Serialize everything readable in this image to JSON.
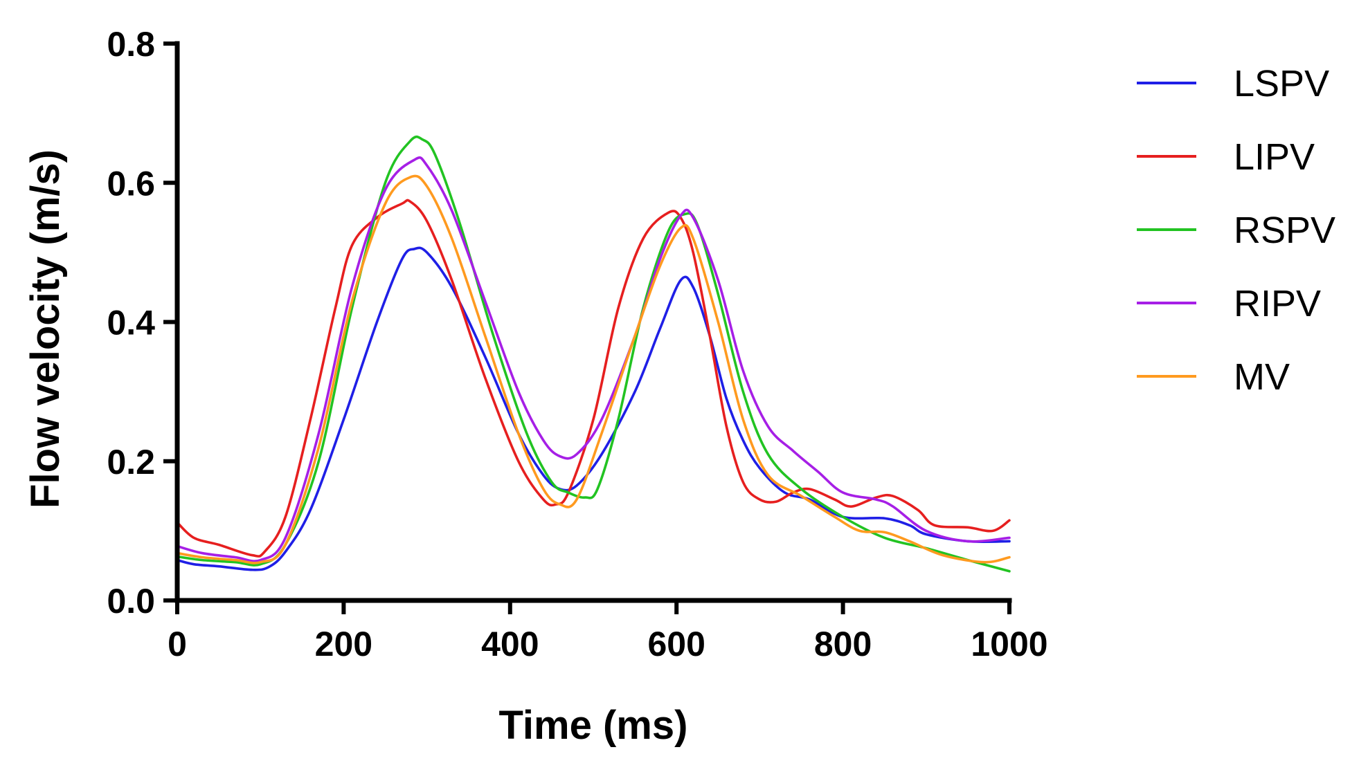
{
  "chart_data": {
    "type": "line",
    "title": "",
    "xlabel": "Time (ms)",
    "ylabel": "Flow velocity (m/s)",
    "xlim": [
      0,
      1000
    ],
    "ylim": [
      0,
      0.8
    ],
    "x_ticks": [
      0,
      200,
      400,
      600,
      800,
      1000
    ],
    "x_tick_labels": [
      "0",
      "200",
      "400",
      "600",
      "800",
      "1000"
    ],
    "y_ticks": [
      0,
      0.2,
      0.4,
      0.6,
      0.8
    ],
    "y_tick_labels": [
      "0.0",
      "0.2",
      "0.4",
      "0.6",
      "0.8"
    ],
    "grid": false,
    "legend_position": "top-right outside",
    "series": [
      {
        "name": "LSPV",
        "color": "#1f1fe6",
        "points": [
          [
            0,
            0.058
          ],
          [
            20,
            0.052
          ],
          [
            50,
            0.049
          ],
          [
            90,
            0.044
          ],
          [
            110,
            0.048
          ],
          [
            130,
            0.07
          ],
          [
            160,
            0.13
          ],
          [
            200,
            0.26
          ],
          [
            240,
            0.4
          ],
          [
            270,
            0.49
          ],
          [
            285,
            0.505
          ],
          [
            300,
            0.5
          ],
          [
            330,
            0.45
          ],
          [
            370,
            0.35
          ],
          [
            410,
            0.24
          ],
          [
            440,
            0.18
          ],
          [
            460,
            0.16
          ],
          [
            480,
            0.165
          ],
          [
            510,
            0.21
          ],
          [
            550,
            0.3
          ],
          [
            580,
            0.39
          ],
          [
            605,
            0.46
          ],
          [
            620,
            0.45
          ],
          [
            640,
            0.38
          ],
          [
            660,
            0.29
          ],
          [
            680,
            0.23
          ],
          [
            700,
            0.19
          ],
          [
            730,
            0.155
          ],
          [
            760,
            0.145
          ],
          [
            800,
            0.12
          ],
          [
            850,
            0.118
          ],
          [
            880,
            0.108
          ],
          [
            900,
            0.095
          ],
          [
            950,
            0.085
          ],
          [
            1000,
            0.085
          ]
        ]
      },
      {
        "name": "LIPV",
        "color": "#e61f1f",
        "points": [
          [
            0,
            0.112
          ],
          [
            20,
            0.09
          ],
          [
            50,
            0.08
          ],
          [
            90,
            0.065
          ],
          [
            105,
            0.07
          ],
          [
            130,
            0.12
          ],
          [
            160,
            0.26
          ],
          [
            190,
            0.42
          ],
          [
            210,
            0.51
          ],
          [
            240,
            0.55
          ],
          [
            270,
            0.57
          ],
          [
            280,
            0.573
          ],
          [
            300,
            0.545
          ],
          [
            330,
            0.46
          ],
          [
            370,
            0.32
          ],
          [
            410,
            0.2
          ],
          [
            440,
            0.145
          ],
          [
            455,
            0.138
          ],
          [
            470,
            0.155
          ],
          [
            500,
            0.26
          ],
          [
            530,
            0.42
          ],
          [
            560,
            0.52
          ],
          [
            590,
            0.557
          ],
          [
            605,
            0.55
          ],
          [
            620,
            0.5
          ],
          [
            640,
            0.38
          ],
          [
            660,
            0.25
          ],
          [
            680,
            0.17
          ],
          [
            700,
            0.145
          ],
          [
            720,
            0.142
          ],
          [
            740,
            0.155
          ],
          [
            760,
            0.16
          ],
          [
            790,
            0.145
          ],
          [
            810,
            0.135
          ],
          [
            840,
            0.148
          ],
          [
            860,
            0.15
          ],
          [
            890,
            0.13
          ],
          [
            910,
            0.108
          ],
          [
            950,
            0.105
          ],
          [
            980,
            0.1
          ],
          [
            1000,
            0.115
          ]
        ]
      },
      {
        "name": "RSPV",
        "color": "#22c322",
        "points": [
          [
            0,
            0.063
          ],
          [
            30,
            0.058
          ],
          [
            70,
            0.055
          ],
          [
            100,
            0.052
          ],
          [
            130,
            0.08
          ],
          [
            170,
            0.2
          ],
          [
            210,
            0.42
          ],
          [
            250,
            0.6
          ],
          [
            280,
            0.66
          ],
          [
            295,
            0.662
          ],
          [
            310,
            0.64
          ],
          [
            340,
            0.54
          ],
          [
            380,
            0.38
          ],
          [
            420,
            0.24
          ],
          [
            450,
            0.17
          ],
          [
            470,
            0.155
          ],
          [
            490,
            0.148
          ],
          [
            505,
            0.16
          ],
          [
            530,
            0.26
          ],
          [
            560,
            0.42
          ],
          [
            590,
            0.53
          ],
          [
            610,
            0.555
          ],
          [
            625,
            0.54
          ],
          [
            650,
            0.44
          ],
          [
            680,
            0.3
          ],
          [
            710,
            0.21
          ],
          [
            750,
            0.16
          ],
          [
            800,
            0.12
          ],
          [
            850,
            0.09
          ],
          [
            900,
            0.075
          ],
          [
            950,
            0.058
          ],
          [
            1000,
            0.042
          ]
        ]
      },
      {
        "name": "RIPV",
        "color": "#a61fe6",
        "points": [
          [
            0,
            0.078
          ],
          [
            30,
            0.068
          ],
          [
            70,
            0.062
          ],
          [
            100,
            0.058
          ],
          [
            130,
            0.09
          ],
          [
            170,
            0.24
          ],
          [
            210,
            0.45
          ],
          [
            250,
            0.59
          ],
          [
            285,
            0.633
          ],
          [
            300,
            0.625
          ],
          [
            330,
            0.56
          ],
          [
            370,
            0.43
          ],
          [
            410,
            0.3
          ],
          [
            440,
            0.23
          ],
          [
            460,
            0.207
          ],
          [
            480,
            0.21
          ],
          [
            510,
            0.26
          ],
          [
            550,
            0.38
          ],
          [
            580,
            0.49
          ],
          [
            605,
            0.553
          ],
          [
            620,
            0.55
          ],
          [
            650,
            0.46
          ],
          [
            680,
            0.33
          ],
          [
            710,
            0.25
          ],
          [
            740,
            0.215
          ],
          [
            770,
            0.185
          ],
          [
            800,
            0.155
          ],
          [
            840,
            0.145
          ],
          [
            860,
            0.135
          ],
          [
            900,
            0.1
          ],
          [
            950,
            0.085
          ],
          [
            1000,
            0.09
          ]
        ]
      },
      {
        "name": "MV",
        "color": "#ff9a1f",
        "points": [
          [
            0,
            0.068
          ],
          [
            30,
            0.062
          ],
          [
            70,
            0.058
          ],
          [
            100,
            0.055
          ],
          [
            130,
            0.08
          ],
          [
            170,
            0.22
          ],
          [
            210,
            0.43
          ],
          [
            250,
            0.57
          ],
          [
            280,
            0.608
          ],
          [
            300,
            0.595
          ],
          [
            330,
            0.52
          ],
          [
            370,
            0.38
          ],
          [
            410,
            0.24
          ],
          [
            440,
            0.16
          ],
          [
            460,
            0.138
          ],
          [
            480,
            0.145
          ],
          [
            510,
            0.24
          ],
          [
            550,
            0.38
          ],
          [
            580,
            0.48
          ],
          [
            605,
            0.535
          ],
          [
            620,
            0.52
          ],
          [
            650,
            0.4
          ],
          [
            680,
            0.26
          ],
          [
            710,
            0.18
          ],
          [
            750,
            0.15
          ],
          [
            790,
            0.12
          ],
          [
            820,
            0.1
          ],
          [
            850,
            0.098
          ],
          [
            880,
            0.085
          ],
          [
            920,
            0.065
          ],
          [
            970,
            0.055
          ],
          [
            1000,
            0.062
          ]
        ]
      }
    ]
  }
}
